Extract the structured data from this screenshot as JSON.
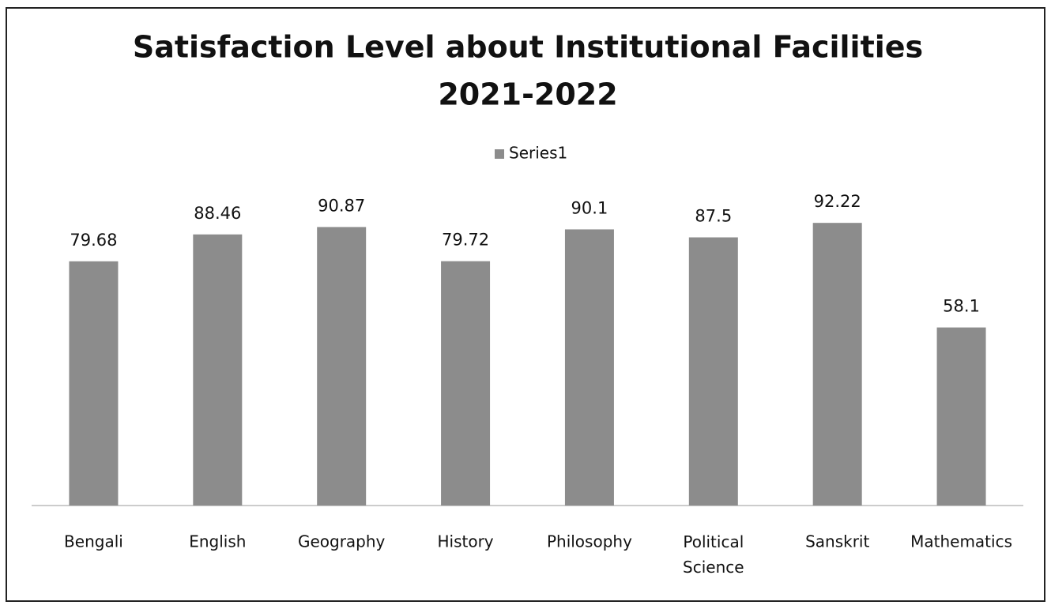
{
  "chart_data": {
    "type": "bar",
    "title": [
      "Satisfaction Level about Institutional Facilities",
      "2021-2022"
    ],
    "categories": [
      "Bengali",
      "English",
      "Geography",
      "History",
      "Philosophy",
      "Political Science",
      "Sanskrit",
      "Mathematics"
    ],
    "series": [
      {
        "name": "Series1",
        "color": "#8c8c8c",
        "values": [
          79.68,
          88.46,
          90.87,
          79.72,
          90.1,
          87.5,
          92.22,
          58.1
        ]
      }
    ],
    "ylim": [
      0,
      100
    ],
    "legend": "top"
  }
}
